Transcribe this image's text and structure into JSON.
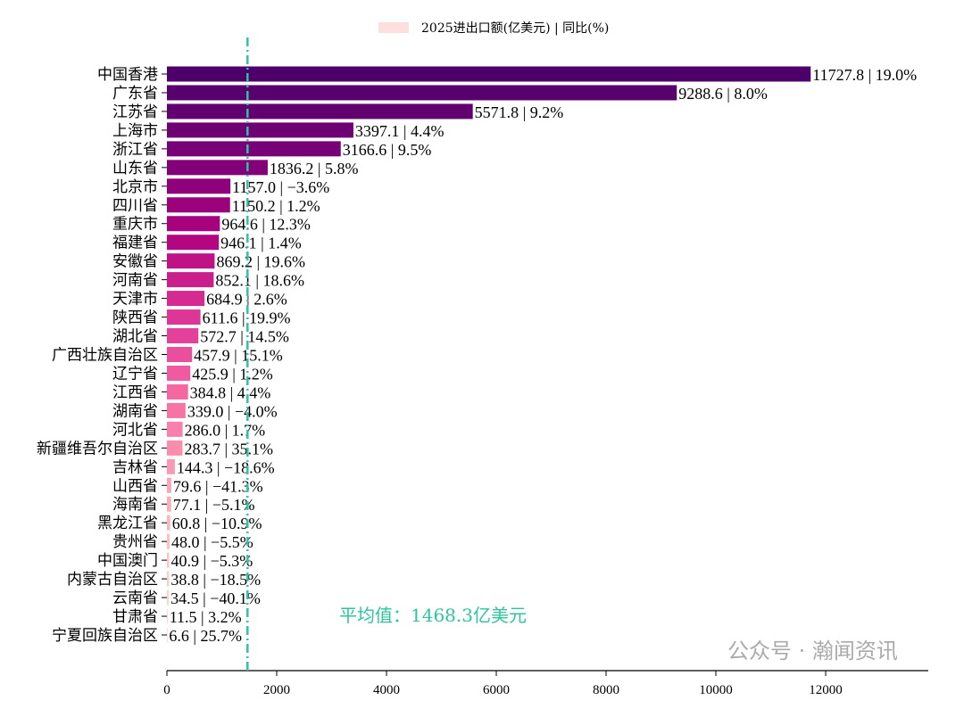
{
  "chart_data": {
    "type": "bar",
    "orientation": "horizontal",
    "legend": {
      "label": "2025进出口额(亿美元) | 同比(%)",
      "color": "#fde0dd",
      "placement": "top-center"
    },
    "categories": [
      "中国香港",
      "广东省",
      "江苏省",
      "上海市",
      "浙江省",
      "山东省",
      "北京市",
      "四川省",
      "重庆市",
      "福建省",
      "安徽省",
      "河南省",
      "天津市",
      "陕西省",
      "湖北省",
      "广西壮族自治区",
      "辽宁省",
      "江西省",
      "湖南省",
      "河北省",
      "新疆维吾尔自治区",
      "吉林省",
      "山西省",
      "海南省",
      "黑龙江省",
      "贵州省",
      "中国澳门",
      "内蒙古自治区",
      "云南省",
      "甘肃省",
      "宁夏回族自治区"
    ],
    "values": [
      11727.8,
      9288.6,
      5571.8,
      3397.1,
      3166.6,
      1836.2,
      1157.0,
      1150.2,
      964.6,
      946.1,
      869.2,
      852.1,
      684.9,
      611.6,
      572.7,
      457.9,
      425.9,
      384.8,
      339.0,
      286.0,
      283.7,
      144.3,
      79.6,
      77.1,
      60.8,
      48.0,
      40.9,
      38.8,
      34.5,
      11.5,
      6.6
    ],
    "yoy": [
      "19.0%",
      "8.0%",
      "9.2%",
      "4.4%",
      "9.5%",
      "5.8%",
      "−3.6%",
      "1.2%",
      "12.3%",
      "1.4%",
      "19.6%",
      "18.6%",
      "2.6%",
      "19.9%",
      "14.5%",
      "15.1%",
      "1.2%",
      "4.4%",
      "−4.0%",
      "1.7%",
      "35.1%",
      "−18.6%",
      "−41.3%",
      "−5.1%",
      "−10.9%",
      "−5.5%",
      "−5.3%",
      "−18.5%",
      "−40.1%",
      "3.2%",
      "25.7%"
    ],
    "xlim": [
      0,
      12000
    ],
    "xticks": [
      "0",
      "2000",
      "4000",
      "6000",
      "8000",
      "10000",
      "12000"
    ],
    "mean": {
      "value": 1468.3,
      "label": "平均值：1468.3亿美元",
      "color": "#2ec4a0"
    },
    "colors": [
      "#4d006a",
      "#7a0177",
      "#ae017e",
      "#dd3497",
      "#f768a1",
      "#fa9fb5",
      "#fcc5c0",
      "#fde0dd"
    ]
  },
  "watermark": "公众号 · 瀚闻资讯"
}
